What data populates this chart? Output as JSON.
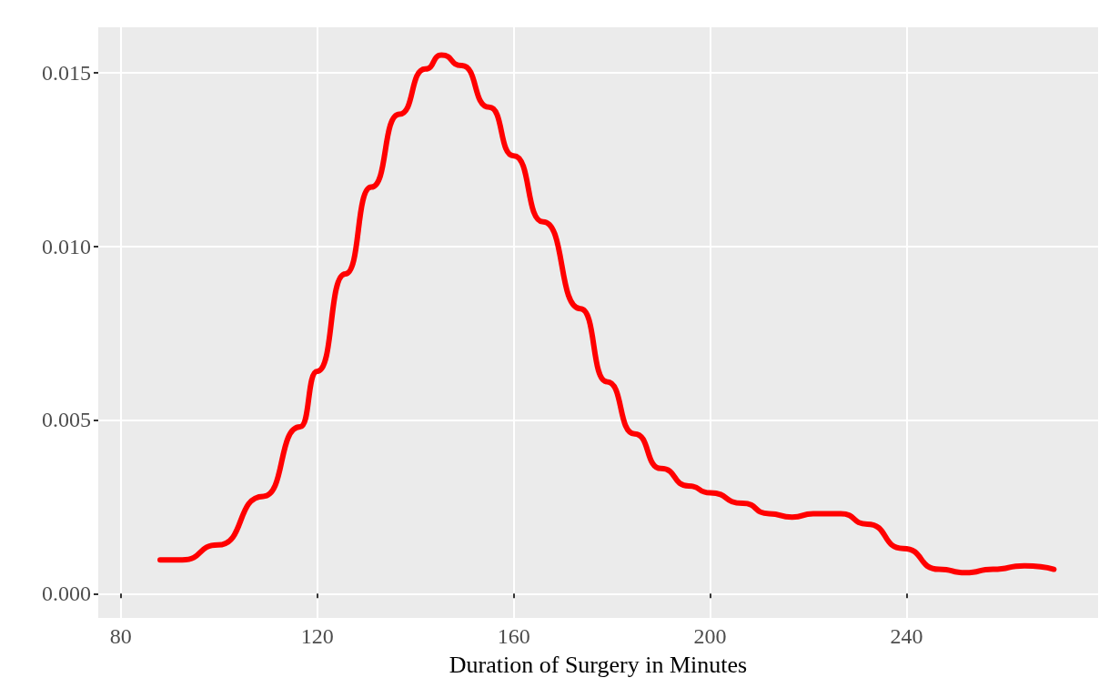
{
  "chart_data": {
    "type": "line",
    "xlabel": "Duration of Surgery in Minutes",
    "x": [
      88,
      92.5,
      99.8,
      109,
      116.5,
      120,
      125.7,
      131,
      136.7,
      142,
      145.3,
      149.4,
      155,
      160,
      166,
      173.6,
      179,
      184.6,
      190,
      195.6,
      200,
      206.6,
      212,
      216.7,
      221,
      226.6,
      232,
      239.3,
      246.6,
      252,
      257.6,
      264,
      270
    ],
    "series": [
      {
        "color": "#ff0000",
        "values": [
          0.00097,
          0.00097,
          0.0014,
          0.0028,
          0.0048,
          0.0064,
          0.0092,
          0.0117,
          0.0138,
          0.0151,
          0.0155,
          0.0152,
          0.014,
          0.0126,
          0.0107,
          0.0082,
          0.0061,
          0.0046,
          0.0036,
          0.0031,
          0.0029,
          0.0026,
          0.0023,
          0.0022,
          0.0023,
          0.0023,
          0.002,
          0.0013,
          0.0007,
          0.0006,
          0.0007,
          0.0008,
          0.0007
        ]
      }
    ],
    "xlim": [
      75.4,
      279
    ],
    "xticks": [
      80,
      120,
      160,
      200,
      240
    ],
    "ylim": [
      -0.0007,
      0.0163
    ],
    "yticks": [
      {
        "value": 0,
        "label": "0.000"
      },
      0.005,
      {
        "value": 0.01,
        "label": "0.010"
      },
      0.015
    ],
    "grid": true,
    "marker": "none",
    "line_style": "solid"
  }
}
